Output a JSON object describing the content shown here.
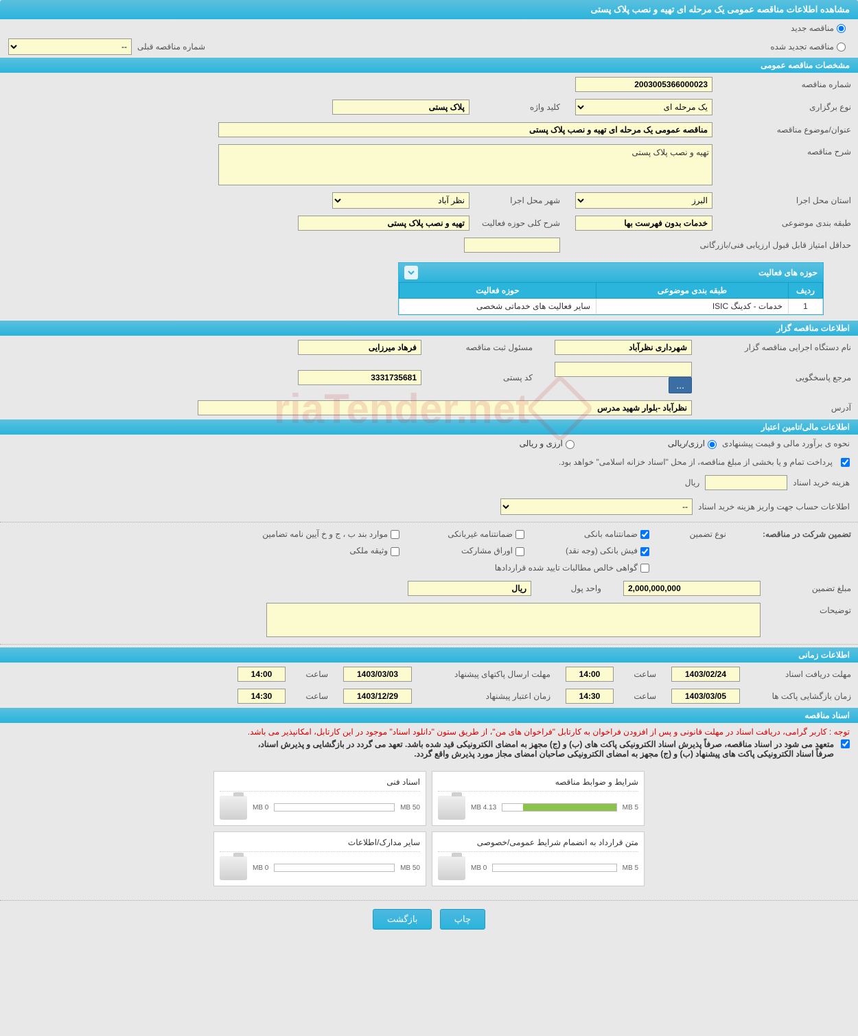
{
  "page_title": "مشاهده اطلاعات مناقصه عمومی یک مرحله ای تهیه و نصب پلاک پستی",
  "radio": {
    "new_tender": "مناقصه جدید",
    "renewed_tender": "مناقصه تجدید شده"
  },
  "prev_tender": {
    "label": "شماره مناقصه قبلی",
    "value": "--"
  },
  "section_general": "مشخصات مناقصه عمومی",
  "general": {
    "tender_no_label": "شماره مناقصه",
    "tender_no": "2003005366000023",
    "holding_type_label": "نوع برگزاری",
    "holding_type": "یک مرحله ای",
    "keyword_label": "کلید واژه",
    "keyword": "پلاک پستی",
    "subject_label": "عنوان/موضوع مناقصه",
    "subject": "مناقصه عمومی یک مرحله ای تهیه و نصب پلاک پستی",
    "desc_label": "شرح مناقصه",
    "desc": "تهیه و نصب پلاک پستی",
    "province_label": "استان محل اجرا",
    "province": "البرز",
    "city_label": "شهر محل اجرا",
    "city": "نظر آباد",
    "category_label": "طبقه بندی موضوعی",
    "category": "خدمات بدون فهرست بها",
    "activity_scope_label": "شرح کلی حوزه فعالیت",
    "activity_scope": "تهیه و نصب پلاک پستی",
    "min_score_label": "حداقل امتیاز قابل قبول ارزیابی فنی/بازرگانی"
  },
  "activity_panel": {
    "title": "حوزه های فعالیت",
    "col_row": "ردیف",
    "col_category": "طبقه بندی موضوعی",
    "col_scope": "حوزه فعالیت",
    "rows": [
      {
        "idx": "1",
        "category": "خدمات - کدینگ ISIC",
        "scope": "سایر فعالیت های خدماتی شخصی"
      }
    ]
  },
  "section_organizer": "اطلاعات مناقصه گزار",
  "organizer": {
    "org_label": "نام دستگاه اجرایی مناقصه گزار",
    "org": "شهرداری نظرآباد",
    "registrar_label": "مسئول ثبت مناقصه",
    "registrar": "فرهاد  میرزایی",
    "responder_label": "مرجع پاسخگویی",
    "responder": "",
    "postal_label": "کد پستی",
    "postal": "3331735681",
    "address_label": "آدرس",
    "address": "نظرآباد -بلوار شهید مدرس"
  },
  "section_financial": "اطلاعات مالی/تامین اعتبار",
  "financial": {
    "method_label": "نحوه ی برآورد مالی و قیمت پیشنهادی",
    "rial_currency": "ارزی/ریالی",
    "rial_only": "ارزی و ریالی",
    "payment_note": "پرداخت تمام و یا بخشی از مبلغ مناقصه، از محل \"اسناد خزانه اسلامی\" خواهد بود.",
    "doc_cost_label": "هزینه خرید اسناد",
    "doc_cost_unit": "ریال",
    "deposit_account_label": "اطلاعات حساب جهت واریز هزینه خرید اسناد",
    "deposit_account": "--"
  },
  "guarantee": {
    "title_label": "تضمین شرکت در مناقصه:",
    "type_label": "نوع تضمین",
    "bank_guarantee": "ضمانتنامه بانکی",
    "non_bank_guarantee": "ضمانتنامه غیربانکی",
    "regulation_cases": "موارد بند ب ، ج و خ آیین نامه تضامین",
    "bank_receipt": "فیش بانکی (وجه نقد)",
    "partnership_bonds": "اوراق مشارکت",
    "property_deposit": "وثیقه ملکی",
    "contract_claims": "گواهی خالص مطالبات تایید شده قراردادها",
    "amount_label": "مبلغ تضمین",
    "amount": "2,000,000,000",
    "currency_label": "واحد پول",
    "currency": "ریال",
    "notes_label": "توضیحات"
  },
  "section_timing": "اطلاعات زمانی",
  "timing": {
    "receive_deadline_label": "مهلت دریافت اسناد",
    "receive_deadline_date": "1403/02/24",
    "receive_deadline_time": "14:00",
    "send_deadline_label": "مهلت ارسال پاکتهای پیشنهاد",
    "send_deadline_date": "1403/03/03",
    "send_deadline_time": "14:00",
    "opening_label": "زمان بازگشایی پاکت ها",
    "opening_date": "1403/03/05",
    "opening_time": "14:30",
    "validity_label": "زمان اعتبار پیشنهاد",
    "validity_date": "1403/12/29",
    "validity_time": "14:30",
    "time_label": "ساعت"
  },
  "section_docs": "اسناد مناقصه",
  "docs": {
    "warning": "توجه : کاربر گرامی، دریافت اسناد در مهلت قانونی و پس از افزودن فراخوان به کارتابل \"فراخوان های من\"، از طریق ستون \"دانلود اسناد\" موجود در این کارتابل، امکانپذیر می باشد.",
    "note1": "متعهد می شود در اسناد مناقصه، صرفاً پذیرش اسناد الکترونیکی پاکت های (ب) و (ج) مجهز به امضای الکترونیکی قید شده باشد. تعهد می گردد در بازگشایی و پذیرش اسناد،",
    "note2": "صرفاً اسناد الکترونیکی پاکت های پیشنهاد (ب) و (ج) مجهز به امضای الکترونیکی صاحبان امضای مجاز مورد پذیرش واقع گردد.",
    "files": [
      {
        "title": "شرایط و ضوابط مناقصه",
        "used": "4.13 MB",
        "total": "5 MB",
        "pct": 82
      },
      {
        "title": "اسناد فنی",
        "used": "0 MB",
        "total": "50 MB",
        "pct": 0
      },
      {
        "title": "متن قرارداد به انضمام شرایط عمومی/خصوصی",
        "used": "0 MB",
        "total": "5 MB",
        "pct": 0
      },
      {
        "title": "سایر مدارک/اطلاعات",
        "used": "0 MB",
        "total": "50 MB",
        "pct": 0
      }
    ]
  },
  "buttons": {
    "print": "چاپ",
    "back": "بازگشت"
  },
  "watermark": "riaTender.net",
  "colors": {
    "header_bg": "#2bb4dc",
    "input_bg": "#fcfbd0",
    "progress_fill": "#8bc34a",
    "red": "#d00000"
  }
}
